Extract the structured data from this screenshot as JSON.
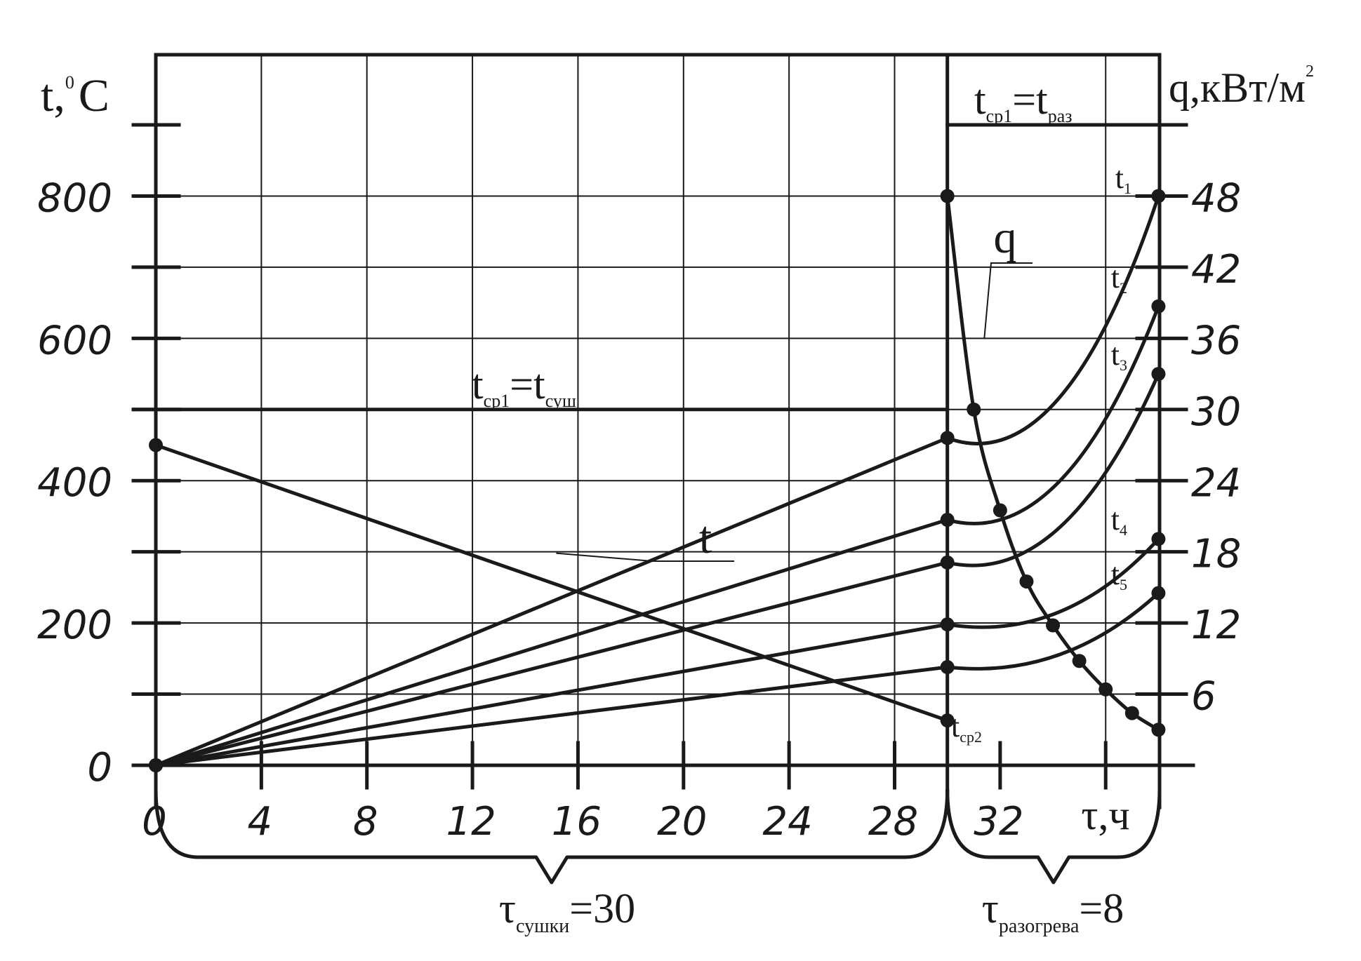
{
  "chart_data": {
    "type": "line",
    "left_axis": {
      "label_main": "t,",
      "label_sup": "0",
      "label_unit": "C",
      "ylim": [
        0,
        900
      ],
      "tick_labels": [
        "0",
        "200",
        "400",
        "600",
        "800"
      ]
    },
    "right_axis": {
      "label_main": "q,кВт/м",
      "label_sup": "2",
      "tick_labels": [
        "6",
        "12",
        "18",
        "24",
        "30",
        "36",
        "42",
        "48"
      ]
    },
    "x_axis": {
      "label": "τ,ч",
      "xlim": [
        0,
        38
      ],
      "tick_labels": [
        "0",
        "4",
        "8",
        "12",
        "16",
        "20",
        "24",
        "28",
        "32"
      ]
    },
    "series": [
      {
        "name": "t1",
        "x": [
          0,
          30,
          38
        ],
        "y": [
          0,
          460,
          800
        ]
      },
      {
        "name": "t2",
        "x": [
          0,
          30,
          38
        ],
        "y": [
          0,
          345,
          645
        ]
      },
      {
        "name": "t3",
        "x": [
          0,
          30,
          38
        ],
        "y": [
          0,
          285,
          550
        ]
      },
      {
        "name": "t4",
        "x": [
          0,
          30,
          38
        ],
        "y": [
          0,
          198,
          318
        ]
      },
      {
        "name": "t5",
        "x": [
          0,
          30,
          38
        ],
        "y": [
          0,
          138,
          242
        ]
      },
      {
        "name": "tср2",
        "x": [
          0,
          30
        ],
        "y": [
          450,
          63
        ]
      },
      {
        "name": "q",
        "x": [
          30,
          31,
          32,
          33,
          34,
          35,
          36,
          37,
          38
        ],
        "y": [
          48,
          30,
          21.5,
          15.5,
          11.8,
          8.8,
          6.4,
          4.4,
          3
        ]
      }
    ],
    "levels": [
      {
        "x": [
          0,
          30
        ],
        "y": 500
      },
      {
        "x": [
          30,
          38
        ],
        "y": 900
      }
    ],
    "annotations": {
      "dry_level": {
        "base1": "t",
        "sub1": "ср1",
        "eq": "=t",
        "sub2": "суш"
      },
      "heat_level": {
        "base1": "t",
        "sub1": "ср1",
        "eq": "=t",
        "sub2": "раз"
      },
      "t_leader": "t",
      "q_leader": "q",
      "t1": {
        "base": "t",
        "sub": "1"
      },
      "t2": {
        "base": "t",
        "sub": "2"
      },
      "t3": {
        "base": "t",
        "sub": "3"
      },
      "t4": {
        "base": "t",
        "sub": "4"
      },
      "t5": {
        "base": "t",
        "sub": "5"
      },
      "tcp2": {
        "base": "t",
        "sub": "ср2"
      }
    },
    "braces": {
      "drying": {
        "base": "τ",
        "sub": "сушки",
        "value": "=30"
      },
      "heating": {
        "base": "τ",
        "sub": "разогрева",
        "value": "=8"
      }
    },
    "colors": {
      "ink": "#1a1a1a",
      "background": "#ffffff"
    },
    "grid": true
  }
}
